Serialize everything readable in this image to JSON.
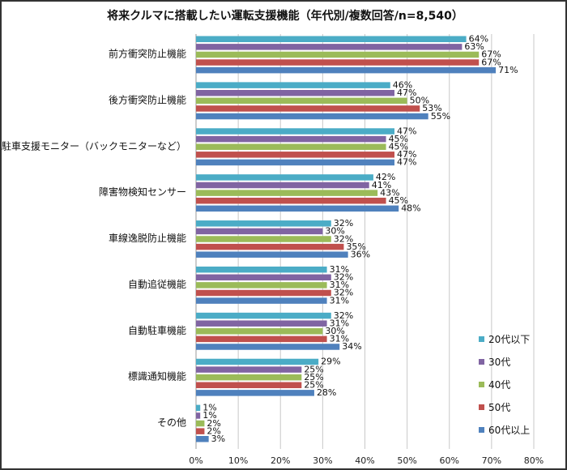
{
  "chart_data": {
    "type": "bar",
    "orientation": "horizontal",
    "title": "将来クルマに搭載したい運転支援機能（年代別/複数回答/n=8,540）",
    "categories": [
      "前方衝突防止機能",
      "後方衝突防止機能",
      "駐車支援モニター（バックモニターなど）",
      "障害物検知センサー",
      "車線逸脱防止機能",
      "自動追従機能",
      "自動駐車機能",
      "標識通知機能",
      "その他"
    ],
    "series": [
      {
        "name": "20代以下",
        "color": "#4bacc6",
        "values": [
          64,
          46,
          47,
          42,
          32,
          31,
          32,
          29,
          1
        ]
      },
      {
        "name": "30代",
        "color": "#8064a2",
        "values": [
          63,
          47,
          45,
          41,
          30,
          32,
          31,
          25,
          1
        ]
      },
      {
        "name": "40代",
        "color": "#9bbb59",
        "values": [
          67,
          50,
          45,
          43,
          32,
          31,
          30,
          25,
          2
        ]
      },
      {
        "name": "50代",
        "color": "#c0504d",
        "values": [
          67,
          53,
          47,
          45,
          35,
          32,
          31,
          25,
          2
        ]
      },
      {
        "name": "60代以上",
        "color": "#4f81bd",
        "values": [
          71,
          55,
          47,
          48,
          36,
          31,
          34,
          28,
          3
        ]
      }
    ],
    "xlim": [
      0,
      80
    ],
    "xticks": [
      "0%",
      "10%",
      "20%",
      "30%",
      "40%",
      "50%",
      "60%",
      "70%",
      "80%"
    ],
    "value_suffix": "%",
    "grid": true,
    "legend_position": "bottom-right"
  }
}
